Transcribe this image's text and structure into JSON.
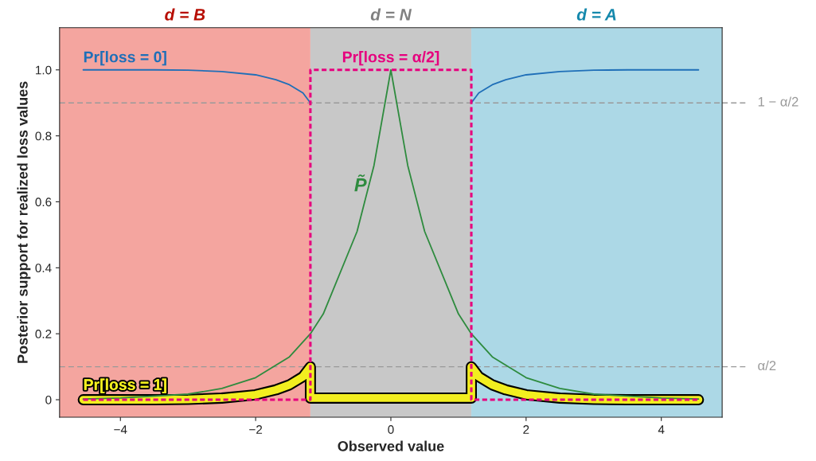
{
  "chart_data": {
    "type": "line",
    "xlabel": "Observed value",
    "ylabel": "Posterior support for realized loss values",
    "xlim": [
      -4.9,
      4.9
    ],
    "ylim": [
      -0.053,
      1.128
    ],
    "xticks": [
      {
        "value": -4,
        "label": "−4"
      },
      {
        "value": -2,
        "label": "−2"
      },
      0,
      2,
      4
    ],
    "yticks": [
      0,
      0.2,
      0.4,
      0.6,
      0.8,
      {
        "value": 1,
        "label": "1.0"
      }
    ],
    "grid": false,
    "bands": [
      {
        "axis": "x",
        "from": -4.9,
        "to": -1.19,
        "label": "d = B",
        "color": "#f4a59f"
      },
      {
        "axis": "x",
        "from": -1.19,
        "to": 1.19,
        "label": "d = N",
        "color": "#c8c8c8"
      },
      {
        "axis": "x",
        "from": 1.19,
        "to": 4.9,
        "label": "d = A",
        "color": "#acd8e6"
      }
    ],
    "ref_lines": [
      {
        "axis": "y",
        "value": 0.9,
        "label": "1 − α/2",
        "color": "#999999",
        "line_style": "dashed"
      },
      {
        "axis": "y",
        "value": 0.1,
        "label": "α/2",
        "color": "#999999",
        "line_style": "dashed"
      }
    ],
    "series": [
      {
        "name": "Pr[loss = 1]",
        "color": "#f2ee1f",
        "line_style": "solid",
        "x": [
          -4.55,
          -4,
          -3.5,
          -3,
          -2.5,
          -2,
          -1.7,
          -1.5,
          -1.3,
          -1.19,
          -1.19,
          1.19,
          1.19,
          1.3,
          1.5,
          1.7,
          2,
          2.5,
          3,
          3.5,
          4,
          4.55
        ],
        "values": [
          0,
          0,
          0,
          0.001,
          0.005,
          0.015,
          0.03,
          0.045,
          0.07,
          0.1,
          0.005,
          0.005,
          0.1,
          0.07,
          0.045,
          0.03,
          0.015,
          0.005,
          0.001,
          0,
          0,
          0
        ]
      },
      {
        "name": "P̃",
        "color": "#2e8b3e",
        "line_style": "solid",
        "x": [
          -4.55,
          -4,
          -3,
          -2.5,
          -2,
          -1.5,
          -1.19,
          -1,
          -0.5,
          -0.25,
          0,
          0.25,
          0.5,
          1,
          1.19,
          1.5,
          2,
          2.5,
          3,
          4,
          4.55
        ],
        "values": [
          0.002,
          0.005,
          0.017,
          0.034,
          0.067,
          0.13,
          0.2,
          0.26,
          0.51,
          0.71,
          1,
          0.71,
          0.51,
          0.26,
          0.2,
          0.13,
          0.067,
          0.034,
          0.017,
          0.005,
          0.002
        ]
      },
      {
        "name": "Pr[loss = 0]",
        "color": "#1f6fb8",
        "line_style": "solid",
        "x": [
          -4.55,
          -4,
          -3.5,
          -3,
          -2.5,
          -2,
          -1.7,
          -1.5,
          -1.3,
          -1.19,
          0,
          1.19,
          1.3,
          1.5,
          1.7,
          2,
          2.5,
          3,
          3.5,
          4,
          4.55
        ],
        "values": [
          1,
          1,
          1,
          0.999,
          0.995,
          0.985,
          0.97,
          0.955,
          0.93,
          0.9,
          null,
          0.9,
          0.93,
          0.955,
          0.97,
          0.985,
          0.995,
          0.999,
          1,
          1,
          1
        ]
      },
      {
        "name": "Pr[loss = α/2]",
        "color": "#e6007e",
        "line_style": "dotted",
        "x": [
          -4.55,
          -1.19,
          -1.19,
          1.19,
          1.19,
          4.55
        ],
        "values": [
          0,
          0,
          1,
          1,
          0,
          0
        ]
      }
    ]
  }
}
